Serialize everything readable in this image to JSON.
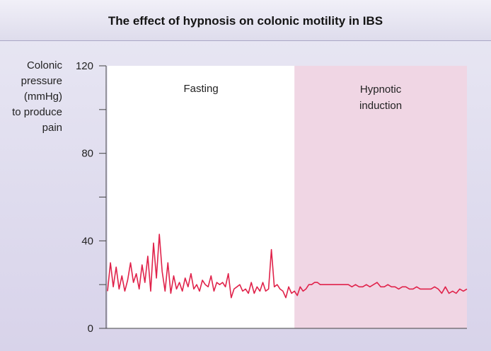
{
  "title": "The effect of hypnosis on colonic motility in IBS",
  "colors": {
    "line": "#e0224a",
    "hypnosis_region": "#f0d6e4",
    "plot_background": "#ffffff",
    "axis": "#444444"
  },
  "chart_data": {
    "type": "line",
    "title": "The effect of hypnosis on colonic motility in IBS",
    "ylabel_lines": [
      "Colonic",
      "pressure",
      "(mmHg)",
      "to produce",
      "pain"
    ],
    "xlabel": "",
    "ylim": [
      0,
      120
    ],
    "xlim": [
      0,
      100
    ],
    "yticks": [
      0,
      40,
      80,
      120
    ],
    "ytick_labels": [
      "0",
      "40",
      "80",
      "120"
    ],
    "grid": false,
    "regions": [
      {
        "label": "Fasting",
        "from": 0,
        "to": 52
      },
      {
        "label_lines": [
          "Hypnotic",
          "induction"
        ],
        "from": 52,
        "to": 100
      }
    ],
    "series": [
      {
        "x": [
          0,
          0.8,
          1.6,
          2.4,
          3.2,
          4.0,
          4.8,
          5.6,
          6.4,
          7.2,
          8.0,
          8.8,
          9.6,
          10.4,
          11.2,
          12.0,
          12.8,
          13.6,
          14.4,
          15.2,
          16.0,
          16.8,
          17.6,
          18.4,
          19.2,
          20.0,
          20.8,
          21.6,
          22.4,
          23.2,
          24.0,
          24.8,
          25.6,
          26.4,
          27.2,
          28.0,
          28.8,
          29.6,
          30.4,
          31.2,
          32.0,
          32.8,
          33.6,
          34.4,
          35.2,
          36.0,
          36.8,
          37.6,
          38.4,
          39.2,
          40.0,
          40.8,
          41.6,
          42.4,
          43.2,
          44.0,
          44.8,
          45.6,
          46.4,
          47.2,
          48.0,
          48.8,
          49.6,
          50.4,
          51.2,
          52.0,
          52.8,
          53.6,
          54.4,
          55.2,
          56.0,
          56.8,
          57.6,
          58.4,
          59.2,
          60.0,
          61.0,
          62.0,
          63.0,
          64.0,
          65.0,
          66.0,
          67.0,
          68.0,
          69.0,
          70.0,
          71.0,
          72.0,
          73.0,
          74.0,
          75.0,
          76.0,
          77.0,
          78.0,
          79.0,
          80.0,
          81.0,
          82.0,
          83.0,
          84.0,
          85.0,
          86.0,
          87.0,
          88.0,
          89.0,
          90.0,
          91.0,
          92.0,
          93.0,
          94.0,
          95.0,
          96.0,
          97.0,
          98.0,
          99.0,
          100.0
        ],
        "y": [
          17,
          30,
          19,
          28,
          18,
          24,
          17,
          22,
          30,
          21,
          25,
          18,
          29,
          21,
          33,
          17,
          39,
          23,
          43,
          26,
          17,
          30,
          16,
          24,
          18,
          21,
          17,
          23,
          19,
          25,
          18,
          20,
          17,
          22,
          20,
          19,
          24,
          17,
          21,
          20,
          21,
          19,
          25,
          14,
          18,
          19,
          20,
          17,
          18,
          16,
          21,
          16,
          19,
          17,
          21,
          17,
          18,
          36,
          19,
          20,
          18,
          17,
          14,
          19,
          16,
          17,
          15,
          19,
          17,
          18,
          20,
          20,
          21,
          21,
          20,
          20,
          20,
          20,
          20,
          20,
          20,
          20,
          20,
          19,
          20,
          19,
          19,
          20,
          19,
          20,
          21,
          19,
          19,
          20,
          19,
          19,
          18,
          19,
          19,
          18,
          18,
          19,
          18,
          18,
          18,
          18,
          19,
          18,
          16,
          19,
          16,
          17,
          16,
          18,
          17,
          18
        ]
      }
    ]
  }
}
